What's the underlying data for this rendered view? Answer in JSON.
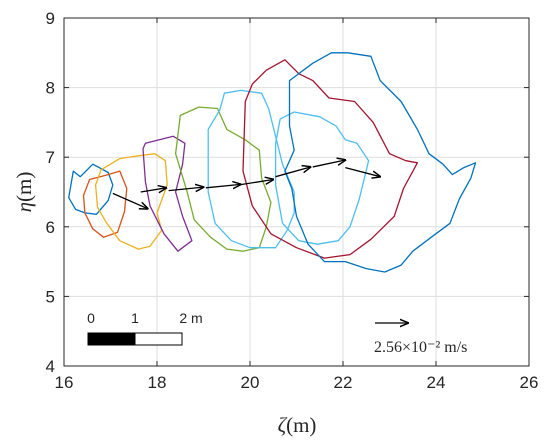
{
  "chart_data": {
    "type": "line",
    "xlabel_symbol": "ζ",
    "xlabel_unit": "(m)",
    "ylabel_symbol": "η",
    "ylabel_unit": "(m)",
    "xlim": [
      16,
      26
    ],
    "ylim": [
      4,
      9
    ],
    "xticks": [
      16,
      18,
      20,
      22,
      24,
      26
    ],
    "yticks": [
      4,
      5,
      6,
      7,
      8,
      9
    ],
    "grid": true,
    "series": [
      {
        "color": "#0072BD",
        "closed": true,
        "points": [
          [
            16.2,
            6.8
          ],
          [
            16.35,
            6.72
          ],
          [
            16.62,
            6.9
          ],
          [
            16.95,
            6.78
          ],
          [
            17.05,
            6.6
          ],
          [
            16.95,
            6.38
          ],
          [
            16.7,
            6.18
          ],
          [
            16.45,
            6.2
          ],
          [
            16.25,
            6.25
          ],
          [
            16.1,
            6.42
          ]
        ]
      },
      {
        "color": "#D95319",
        "closed": true,
        "points": [
          [
            16.55,
            6.68
          ],
          [
            16.9,
            6.74
          ],
          [
            17.2,
            6.8
          ],
          [
            17.35,
            6.55
          ],
          [
            17.3,
            6.22
          ],
          [
            17.15,
            5.92
          ],
          [
            16.85,
            5.85
          ],
          [
            16.62,
            5.97
          ],
          [
            16.45,
            6.2
          ],
          [
            16.42,
            6.45
          ]
        ]
      },
      {
        "color": "#EDB120",
        "closed": true,
        "points": [
          [
            16.8,
            6.82
          ],
          [
            17.2,
            6.98
          ],
          [
            17.6,
            7.02
          ],
          [
            17.95,
            7.05
          ],
          [
            18.18,
            6.95
          ],
          [
            18.22,
            6.6
          ],
          [
            18.0,
            6.2
          ],
          [
            18.1,
            5.95
          ],
          [
            17.85,
            5.72
          ],
          [
            17.6,
            5.68
          ],
          [
            17.2,
            5.8
          ],
          [
            16.92,
            6.05
          ],
          [
            16.72,
            6.28
          ],
          [
            16.68,
            6.6
          ]
        ]
      },
      {
        "color": "#7E2F8E",
        "closed": true,
        "points": [
          [
            17.7,
            7.12
          ],
          [
            17.75,
            7.2
          ],
          [
            18.35,
            7.3
          ],
          [
            18.6,
            7.2
          ],
          [
            18.55,
            6.9
          ],
          [
            18.4,
            6.5
          ],
          [
            18.55,
            6.15
          ],
          [
            18.75,
            5.8
          ],
          [
            18.45,
            5.65
          ],
          [
            18.15,
            5.9
          ],
          [
            17.85,
            6.3
          ],
          [
            17.75,
            6.65
          ]
        ]
      },
      {
        "color": "#77AC30",
        "closed": true,
        "points": [
          [
            18.4,
            7.05
          ],
          [
            18.5,
            7.6
          ],
          [
            18.9,
            7.72
          ],
          [
            19.3,
            7.7
          ],
          [
            19.5,
            7.4
          ],
          [
            19.9,
            7.25
          ],
          [
            20.2,
            7.1
          ],
          [
            20.25,
            6.7
          ],
          [
            20.45,
            6.35
          ],
          [
            20.35,
            6.0
          ],
          [
            20.2,
            5.7
          ],
          [
            19.85,
            5.65
          ],
          [
            19.5,
            5.68
          ],
          [
            19.15,
            5.85
          ],
          [
            18.8,
            6.1
          ],
          [
            18.65,
            6.5
          ]
        ]
      },
      {
        "color": "#4DBEEE",
        "closed": true,
        "points": [
          [
            19.1,
            7.4
          ],
          [
            19.35,
            7.68
          ],
          [
            19.45,
            7.92
          ],
          [
            19.8,
            7.96
          ],
          [
            20.25,
            7.92
          ],
          [
            20.4,
            7.7
          ],
          [
            20.55,
            7.3
          ],
          [
            20.7,
            6.9
          ],
          [
            20.95,
            6.5
          ],
          [
            20.95,
            6.2
          ],
          [
            20.8,
            5.95
          ],
          [
            20.55,
            5.7
          ],
          [
            20.0,
            5.7
          ],
          [
            19.6,
            5.8
          ],
          [
            19.25,
            6.05
          ],
          [
            19.1,
            6.5
          ]
        ]
      },
      {
        "color": "#A2142F",
        "closed": true,
        "points": [
          [
            19.9,
            7.8
          ],
          [
            20.05,
            8.05
          ],
          [
            20.35,
            8.25
          ],
          [
            20.75,
            8.4
          ],
          [
            21.05,
            8.2
          ],
          [
            21.35,
            8.1
          ],
          [
            21.7,
            7.85
          ],
          [
            22.25,
            7.8
          ],
          [
            22.65,
            7.5
          ],
          [
            23.0,
            7.05
          ],
          [
            23.35,
            6.95
          ],
          [
            23.6,
            6.92
          ],
          [
            23.3,
            6.55
          ],
          [
            23.1,
            6.15
          ],
          [
            22.6,
            5.82
          ],
          [
            22.15,
            5.6
          ],
          [
            21.6,
            5.55
          ],
          [
            21.0,
            5.7
          ],
          [
            20.45,
            5.9
          ],
          [
            20.05,
            6.3
          ],
          [
            19.85,
            6.8
          ]
        ]
      },
      {
        "color": "#4DBEEE",
        "closed": true,
        "points": [
          [
            20.55,
            7.2
          ],
          [
            20.65,
            7.55
          ],
          [
            20.95,
            7.65
          ],
          [
            21.5,
            7.58
          ],
          [
            21.85,
            7.45
          ],
          [
            22.05,
            7.25
          ],
          [
            22.3,
            7.2
          ],
          [
            22.55,
            6.95
          ],
          [
            22.35,
            6.4
          ],
          [
            22.15,
            6.0
          ],
          [
            21.9,
            5.8
          ],
          [
            21.45,
            5.75
          ],
          [
            21.05,
            5.8
          ],
          [
            20.7,
            6.05
          ],
          [
            20.55,
            6.6
          ]
        ]
      },
      {
        "color": "#0072BD",
        "closed": true,
        "points": [
          [
            20.85,
            8.1
          ],
          [
            21.35,
            8.35
          ],
          [
            21.75,
            8.5
          ],
          [
            22.1,
            8.5
          ],
          [
            22.6,
            8.45
          ],
          [
            22.8,
            8.1
          ],
          [
            23.25,
            7.8
          ],
          [
            23.6,
            7.4
          ],
          [
            23.85,
            7.05
          ],
          [
            24.15,
            6.9
          ],
          [
            24.35,
            6.75
          ],
          [
            24.6,
            6.85
          ],
          [
            24.85,
            6.92
          ],
          [
            24.75,
            6.7
          ],
          [
            24.5,
            6.4
          ],
          [
            24.3,
            6.05
          ],
          [
            23.9,
            5.85
          ],
          [
            23.5,
            5.65
          ],
          [
            23.25,
            5.45
          ],
          [
            22.9,
            5.35
          ],
          [
            22.5,
            5.4
          ],
          [
            22.05,
            5.5
          ],
          [
            21.6,
            5.5
          ],
          [
            21.25,
            5.75
          ],
          [
            21.0,
            6.15
          ],
          [
            20.9,
            6.55
          ],
          [
            20.75,
            6.8
          ],
          [
            20.95,
            7.1
          ],
          [
            20.85,
            7.45
          ]
        ]
      }
    ],
    "arrows": [
      {
        "x": 17.05,
        "y": 6.48,
        "dx": 0.75,
        "dy": -0.22
      },
      {
        "x": 17.65,
        "y": 6.5,
        "dx": 0.55,
        "dy": 0.06
      },
      {
        "x": 18.25,
        "y": 6.52,
        "dx": 0.75,
        "dy": 0.05
      },
      {
        "x": 19.05,
        "y": 6.56,
        "dx": 0.75,
        "dy": 0.05
      },
      {
        "x": 19.75,
        "y": 6.6,
        "dx": 0.75,
        "dy": 0.08
      },
      {
        "x": 20.55,
        "y": 6.72,
        "dx": 0.75,
        "dy": 0.14
      },
      {
        "x": 21.35,
        "y": 6.86,
        "dx": 0.7,
        "dy": 0.1
      },
      {
        "x": 22.05,
        "y": 6.85,
        "dx": 0.75,
        "dy": -0.13
      }
    ],
    "scalebar": {
      "labels": [
        "0",
        "1",
        "2 m"
      ],
      "values": [
        0,
        1,
        2
      ]
    },
    "reference_arrow_label": "2.56×10⁻² m/s"
  }
}
